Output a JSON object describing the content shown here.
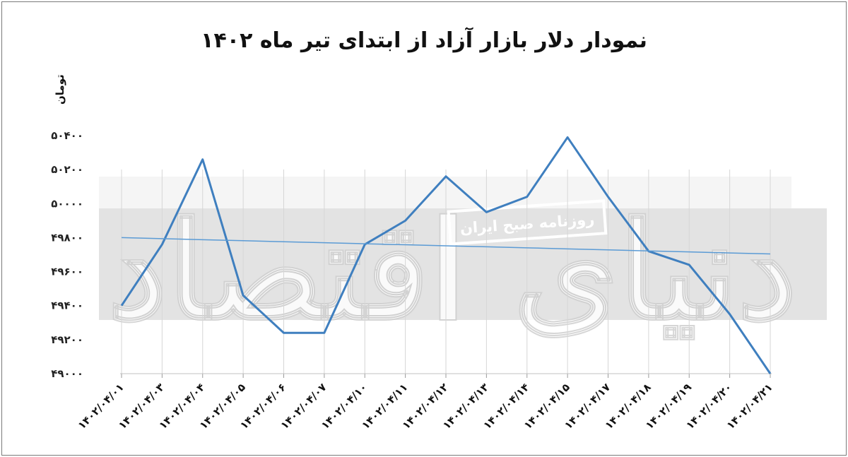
{
  "chart_data": {
    "type": "line",
    "title": "نمودار دلار بازار آزاد از ابتدای تیر ماه ۱۴۰۲",
    "ylabel": "تومان",
    "xlabel": "",
    "categories": [
      "۱۴۰۲/۰۴/۰۱",
      "۱۴۰۲/۰۴/۰۳",
      "۱۴۰۲/۰۴/۰۴",
      "۱۴۰۲/۰۴/۰۵",
      "۱۴۰۲/۰۴/۰۶",
      "۱۴۰۲/۰۴/۰۷",
      "۱۴۰۲/۰۴/۱۰",
      "۱۴۰۲/۰۴/۱۱",
      "۱۴۰۲/۰۴/۱۲",
      "۱۴۰۲/۰۴/۱۳",
      "۱۴۰۲/۰۴/۱۴",
      "۱۴۰۲/۰۴/۱۵",
      "۱۴۰۲/۰۴/۱۷",
      "۱۴۰۲/۰۴/۱۸",
      "۱۴۰۲/۰۴/۱۹",
      "۱۴۰۲/۰۴/۲۰",
      "۱۴۰۲/۰۴/۲۱"
    ],
    "series": [
      {
        "values": [
          49400,
          49760,
          50260,
          49460,
          49240,
          49240,
          49760,
          49900,
          50160,
          49950,
          50040,
          50390,
          50040,
          49720,
          49640,
          49350,
          49000
        ],
        "color": "#3f7fbf"
      },
      {
        "values": [
          49800,
          49794,
          49788,
          49782,
          49776,
          49770,
          49764,
          49758,
          49752,
          49746,
          49740,
          49734,
          49728,
          49722,
          49716,
          49710,
          49704
        ],
        "color": "#5b9bd5"
      }
    ],
    "ylim": [
      49000,
      50400
    ],
    "yticks": [
      49000,
      49200,
      49400,
      49600,
      49800,
      50000,
      50200,
      50400
    ],
    "ytick_labels": [
      "۴۹۰۰۰",
      "۴۹۲۰۰",
      "۴۹۴۰۰",
      "۴۹۶۰۰",
      "۴۹۸۰۰",
      "۵۰۰۰۰",
      "۵۰۲۰۰",
      "۵۰۴۰۰"
    ],
    "grid": "vertical",
    "legend": "none"
  },
  "watermark": {
    "logo_text": "دنیای اقتصاد",
    "badge_text": "روزنامه صبح ایران"
  }
}
